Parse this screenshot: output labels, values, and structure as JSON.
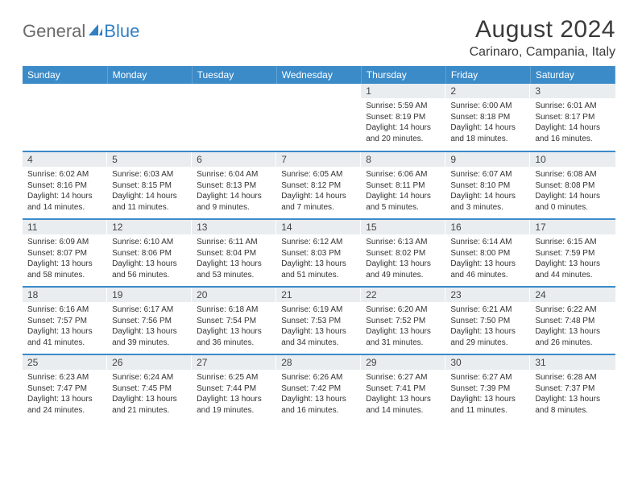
{
  "header": {
    "logo_general": "General",
    "logo_blue": "Blue",
    "month_title": "August 2024",
    "location": "Carinaro, Campania, Italy"
  },
  "weekdays": [
    "Sunday",
    "Monday",
    "Tuesday",
    "Wednesday",
    "Thursday",
    "Friday",
    "Saturday"
  ],
  "colors": {
    "header_bg": "#3b8bc9",
    "row_divider": "#3b8bc9",
    "daynum_bg": "#e9edef",
    "text": "#333333",
    "logo_blue": "#2f7fc2"
  },
  "weeks": [
    [
      {
        "day": "",
        "sunrise": "",
        "sunset": "",
        "daylight": ""
      },
      {
        "day": "",
        "sunrise": "",
        "sunset": "",
        "daylight": ""
      },
      {
        "day": "",
        "sunrise": "",
        "sunset": "",
        "daylight": ""
      },
      {
        "day": "",
        "sunrise": "",
        "sunset": "",
        "daylight": ""
      },
      {
        "day": "1",
        "sunrise": "Sunrise: 5:59 AM",
        "sunset": "Sunset: 8:19 PM",
        "daylight": "Daylight: 14 hours and 20 minutes."
      },
      {
        "day": "2",
        "sunrise": "Sunrise: 6:00 AM",
        "sunset": "Sunset: 8:18 PM",
        "daylight": "Daylight: 14 hours and 18 minutes."
      },
      {
        "day": "3",
        "sunrise": "Sunrise: 6:01 AM",
        "sunset": "Sunset: 8:17 PM",
        "daylight": "Daylight: 14 hours and 16 minutes."
      }
    ],
    [
      {
        "day": "4",
        "sunrise": "Sunrise: 6:02 AM",
        "sunset": "Sunset: 8:16 PM",
        "daylight": "Daylight: 14 hours and 14 minutes."
      },
      {
        "day": "5",
        "sunrise": "Sunrise: 6:03 AM",
        "sunset": "Sunset: 8:15 PM",
        "daylight": "Daylight: 14 hours and 11 minutes."
      },
      {
        "day": "6",
        "sunrise": "Sunrise: 6:04 AM",
        "sunset": "Sunset: 8:13 PM",
        "daylight": "Daylight: 14 hours and 9 minutes."
      },
      {
        "day": "7",
        "sunrise": "Sunrise: 6:05 AM",
        "sunset": "Sunset: 8:12 PM",
        "daylight": "Daylight: 14 hours and 7 minutes."
      },
      {
        "day": "8",
        "sunrise": "Sunrise: 6:06 AM",
        "sunset": "Sunset: 8:11 PM",
        "daylight": "Daylight: 14 hours and 5 minutes."
      },
      {
        "day": "9",
        "sunrise": "Sunrise: 6:07 AM",
        "sunset": "Sunset: 8:10 PM",
        "daylight": "Daylight: 14 hours and 3 minutes."
      },
      {
        "day": "10",
        "sunrise": "Sunrise: 6:08 AM",
        "sunset": "Sunset: 8:08 PM",
        "daylight": "Daylight: 14 hours and 0 minutes."
      }
    ],
    [
      {
        "day": "11",
        "sunrise": "Sunrise: 6:09 AM",
        "sunset": "Sunset: 8:07 PM",
        "daylight": "Daylight: 13 hours and 58 minutes."
      },
      {
        "day": "12",
        "sunrise": "Sunrise: 6:10 AM",
        "sunset": "Sunset: 8:06 PM",
        "daylight": "Daylight: 13 hours and 56 minutes."
      },
      {
        "day": "13",
        "sunrise": "Sunrise: 6:11 AM",
        "sunset": "Sunset: 8:04 PM",
        "daylight": "Daylight: 13 hours and 53 minutes."
      },
      {
        "day": "14",
        "sunrise": "Sunrise: 6:12 AM",
        "sunset": "Sunset: 8:03 PM",
        "daylight": "Daylight: 13 hours and 51 minutes."
      },
      {
        "day": "15",
        "sunrise": "Sunrise: 6:13 AM",
        "sunset": "Sunset: 8:02 PM",
        "daylight": "Daylight: 13 hours and 49 minutes."
      },
      {
        "day": "16",
        "sunrise": "Sunrise: 6:14 AM",
        "sunset": "Sunset: 8:00 PM",
        "daylight": "Daylight: 13 hours and 46 minutes."
      },
      {
        "day": "17",
        "sunrise": "Sunrise: 6:15 AM",
        "sunset": "Sunset: 7:59 PM",
        "daylight": "Daylight: 13 hours and 44 minutes."
      }
    ],
    [
      {
        "day": "18",
        "sunrise": "Sunrise: 6:16 AM",
        "sunset": "Sunset: 7:57 PM",
        "daylight": "Daylight: 13 hours and 41 minutes."
      },
      {
        "day": "19",
        "sunrise": "Sunrise: 6:17 AM",
        "sunset": "Sunset: 7:56 PM",
        "daylight": "Daylight: 13 hours and 39 minutes."
      },
      {
        "day": "20",
        "sunrise": "Sunrise: 6:18 AM",
        "sunset": "Sunset: 7:54 PM",
        "daylight": "Daylight: 13 hours and 36 minutes."
      },
      {
        "day": "21",
        "sunrise": "Sunrise: 6:19 AM",
        "sunset": "Sunset: 7:53 PM",
        "daylight": "Daylight: 13 hours and 34 minutes."
      },
      {
        "day": "22",
        "sunrise": "Sunrise: 6:20 AM",
        "sunset": "Sunset: 7:52 PM",
        "daylight": "Daylight: 13 hours and 31 minutes."
      },
      {
        "day": "23",
        "sunrise": "Sunrise: 6:21 AM",
        "sunset": "Sunset: 7:50 PM",
        "daylight": "Daylight: 13 hours and 29 minutes."
      },
      {
        "day": "24",
        "sunrise": "Sunrise: 6:22 AM",
        "sunset": "Sunset: 7:48 PM",
        "daylight": "Daylight: 13 hours and 26 minutes."
      }
    ],
    [
      {
        "day": "25",
        "sunrise": "Sunrise: 6:23 AM",
        "sunset": "Sunset: 7:47 PM",
        "daylight": "Daylight: 13 hours and 24 minutes."
      },
      {
        "day": "26",
        "sunrise": "Sunrise: 6:24 AM",
        "sunset": "Sunset: 7:45 PM",
        "daylight": "Daylight: 13 hours and 21 minutes."
      },
      {
        "day": "27",
        "sunrise": "Sunrise: 6:25 AM",
        "sunset": "Sunset: 7:44 PM",
        "daylight": "Daylight: 13 hours and 19 minutes."
      },
      {
        "day": "28",
        "sunrise": "Sunrise: 6:26 AM",
        "sunset": "Sunset: 7:42 PM",
        "daylight": "Daylight: 13 hours and 16 minutes."
      },
      {
        "day": "29",
        "sunrise": "Sunrise: 6:27 AM",
        "sunset": "Sunset: 7:41 PM",
        "daylight": "Daylight: 13 hours and 14 minutes."
      },
      {
        "day": "30",
        "sunrise": "Sunrise: 6:27 AM",
        "sunset": "Sunset: 7:39 PM",
        "daylight": "Daylight: 13 hours and 11 minutes."
      },
      {
        "day": "31",
        "sunrise": "Sunrise: 6:28 AM",
        "sunset": "Sunset: 7:37 PM",
        "daylight": "Daylight: 13 hours and 8 minutes."
      }
    ]
  ]
}
